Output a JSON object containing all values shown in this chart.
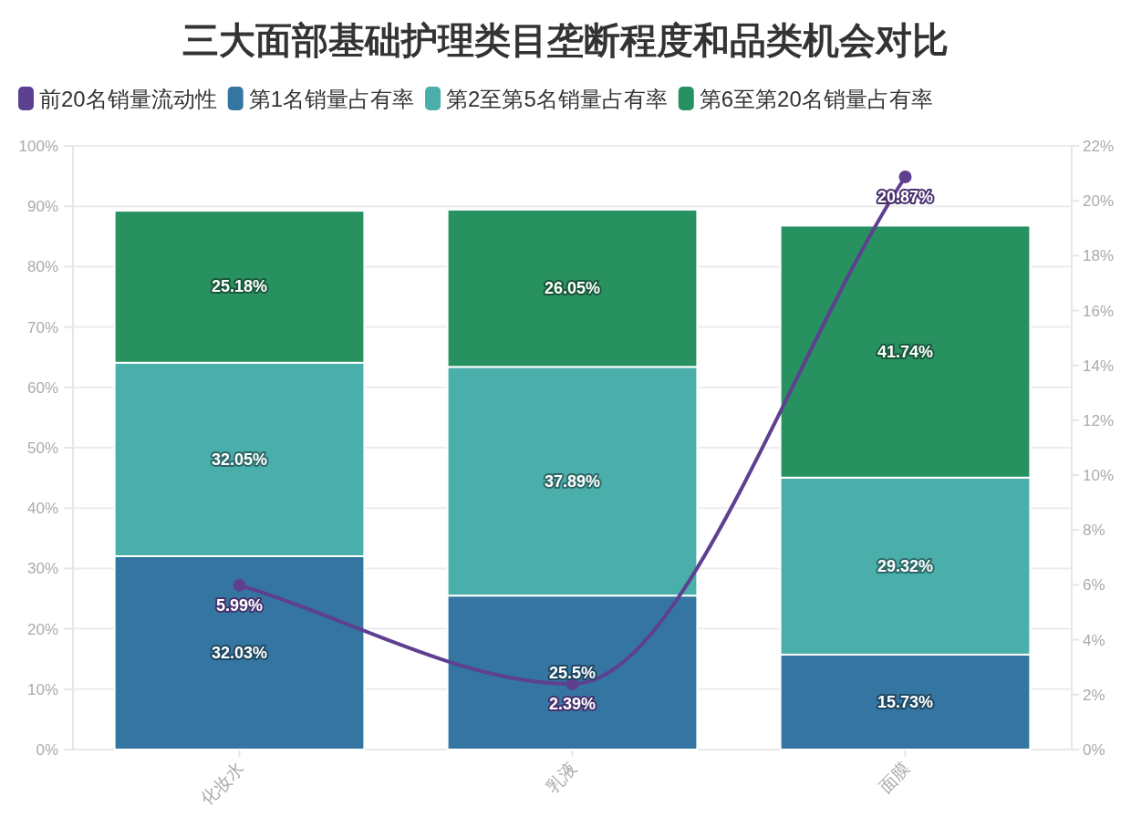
{
  "chart_data": {
    "type": "bar",
    "title": "三大面部基础护理类目垄断程度和品类机会对比",
    "categories": [
      "化妆水",
      "乳液",
      "面膜"
    ],
    "stacked": true,
    "grid": "y",
    "legend": "top",
    "marker": "circle",
    "series": [
      {
        "name": "前20名销量流动性",
        "type": "line",
        "axis": "y2",
        "color": "#5e4091",
        "values": [
          5.99,
          2.39,
          20.87
        ],
        "value_labels": [
          "5.99%",
          "2.39%",
          "20.87%"
        ]
      },
      {
        "name": "第1名销量占有率",
        "color": "#3476a1",
        "values": [
          32.03,
          25.5,
          15.73
        ],
        "value_labels": [
          "32.03%",
          "25.5%",
          "15.73%"
        ]
      },
      {
        "name": "第2至第5名销量占有率",
        "color": "#4aaeab",
        "values": [
          32.05,
          37.89,
          29.32
        ],
        "value_labels": [
          "32.05%",
          "37.89%",
          "29.32%"
        ]
      },
      {
        "name": "第6至第20名销量占有率",
        "color": "#27915f",
        "values": [
          25.18,
          26.05,
          41.74
        ],
        "value_labels": [
          "25.18%",
          "26.05%",
          "41.74%"
        ]
      }
    ],
    "ylim": [
      0,
      100
    ],
    "yticks": [
      {
        "value": 0,
        "label": "0%"
      },
      {
        "value": 10,
        "label": "10%"
      },
      {
        "value": 20,
        "label": "20%"
      },
      {
        "value": 30,
        "label": "30%"
      },
      {
        "value": 40,
        "label": "40%"
      },
      {
        "value": 50,
        "label": "50%"
      },
      {
        "value": 60,
        "label": "60%"
      },
      {
        "value": 70,
        "label": "70%"
      },
      {
        "value": 80,
        "label": "80%"
      },
      {
        "value": 90,
        "label": "90%"
      },
      {
        "value": 100,
        "label": "100%"
      }
    ],
    "y2lim": [
      0,
      22
    ],
    "y2ticks": [
      {
        "value": 0,
        "label": "0%"
      },
      {
        "value": 2,
        "label": "2%"
      },
      {
        "value": 4,
        "label": "4%"
      },
      {
        "value": 6,
        "label": "6%"
      },
      {
        "value": 8,
        "label": "8%"
      },
      {
        "value": 10,
        "label": "10%"
      },
      {
        "value": 12,
        "label": "12%"
      },
      {
        "value": 14,
        "label": "14%"
      },
      {
        "value": 16,
        "label": "16%"
      },
      {
        "value": 18,
        "label": "18%"
      },
      {
        "value": 20,
        "label": "20%"
      },
      {
        "value": 22,
        "label": "22%"
      }
    ]
  }
}
